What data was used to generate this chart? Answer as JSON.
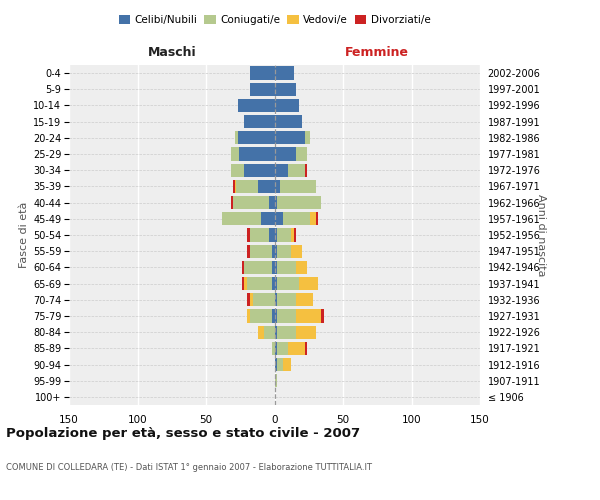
{
  "age_groups": [
    "100+",
    "95-99",
    "90-94",
    "85-89",
    "80-84",
    "75-79",
    "70-74",
    "65-69",
    "60-64",
    "55-59",
    "50-54",
    "45-49",
    "40-44",
    "35-39",
    "30-34",
    "25-29",
    "20-24",
    "15-19",
    "10-14",
    "5-9",
    "0-4"
  ],
  "birth_years": [
    "≤ 1906",
    "1907-1911",
    "1912-1916",
    "1917-1921",
    "1922-1926",
    "1927-1931",
    "1932-1936",
    "1937-1941",
    "1942-1946",
    "1947-1951",
    "1952-1956",
    "1957-1961",
    "1962-1966",
    "1967-1971",
    "1972-1976",
    "1977-1981",
    "1982-1986",
    "1987-1991",
    "1992-1996",
    "1997-2001",
    "2002-2006"
  ],
  "male_celibe": [
    0,
    0,
    0,
    0,
    0,
    2,
    0,
    2,
    2,
    2,
    4,
    10,
    4,
    12,
    22,
    26,
    27,
    22,
    27,
    18,
    18
  ],
  "male_coniugato": [
    0,
    0,
    0,
    2,
    8,
    16,
    16,
    18,
    20,
    16,
    14,
    28,
    26,
    16,
    10,
    6,
    2,
    0,
    0,
    0,
    0
  ],
  "male_vedovo": [
    0,
    0,
    0,
    0,
    4,
    2,
    2,
    2,
    0,
    0,
    0,
    0,
    0,
    1,
    0,
    0,
    0,
    0,
    0,
    0,
    0
  ],
  "male_divorziato": [
    0,
    0,
    0,
    0,
    0,
    0,
    2,
    2,
    2,
    2,
    2,
    0,
    2,
    1,
    0,
    0,
    0,
    0,
    0,
    0,
    0
  ],
  "female_nubile": [
    0,
    0,
    2,
    2,
    2,
    2,
    2,
    2,
    2,
    2,
    2,
    6,
    2,
    4,
    10,
    16,
    22,
    20,
    18,
    16,
    14
  ],
  "female_coniugata": [
    0,
    2,
    4,
    8,
    14,
    14,
    14,
    16,
    14,
    10,
    10,
    20,
    32,
    26,
    12,
    8,
    4,
    0,
    0,
    0,
    0
  ],
  "female_vedova": [
    0,
    0,
    6,
    12,
    14,
    18,
    12,
    14,
    8,
    8,
    2,
    4,
    0,
    0,
    0,
    0,
    0,
    0,
    0,
    0,
    0
  ],
  "female_divorziata": [
    0,
    0,
    0,
    2,
    0,
    2,
    0,
    0,
    0,
    0,
    2,
    2,
    0,
    0,
    2,
    0,
    0,
    0,
    0,
    0,
    0
  ],
  "color_celibe": "#4472a8",
  "color_coniugato": "#b5c98e",
  "color_vedovo": "#f5c040",
  "color_divorziato": "#cc2222",
  "xlim": 150,
  "title": "Popolazione per età, sesso e stato civile - 2007",
  "subtitle": "COMUNE DI COLLEDARA (TE) - Dati ISTAT 1° gennaio 2007 - Elaborazione TUTTITALIA.IT",
  "legend_labels": [
    "Celibi/Nubili",
    "Coniugati/e",
    "Vedovi/e",
    "Divorziati/e"
  ],
  "label_maschi": "Maschi",
  "label_femmine": "Femmine",
  "label_fasce": "Fasce di età",
  "label_anni": "Anni di nascita",
  "bg_color": "#eeeeee",
  "bar_height": 0.82
}
